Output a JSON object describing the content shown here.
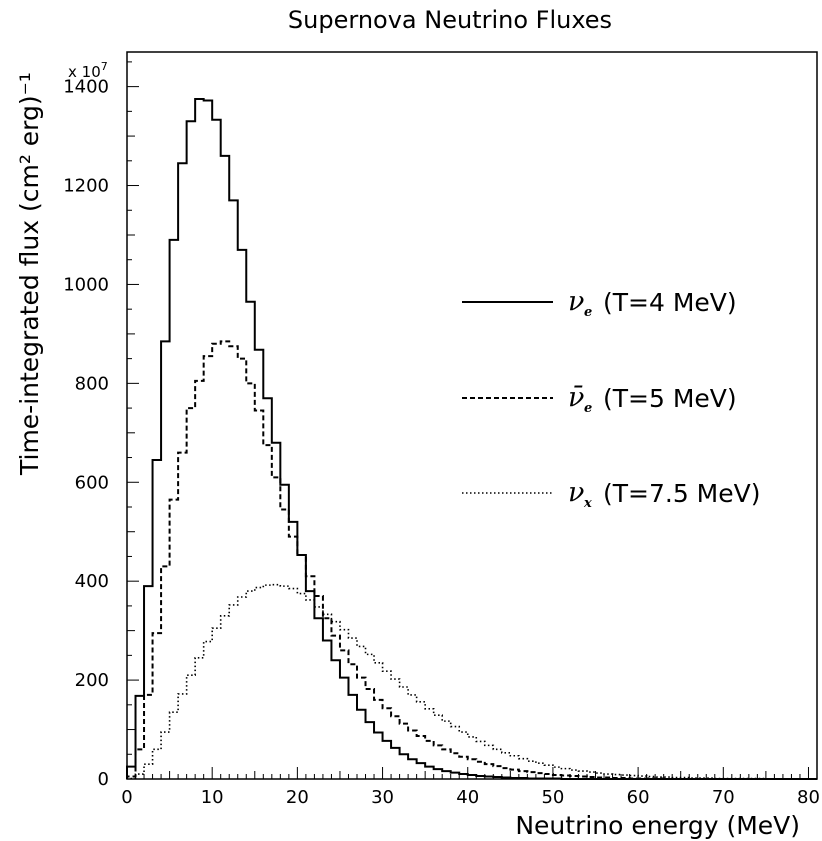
{
  "chart_data": {
    "type": "line",
    "title": "Supernova Neutrino Fluxes",
    "xlabel": "Neutrino energy (MeV)",
    "ylabel": "Time-integrated flux (cm² erg)⁻¹",
    "y_multiplier": "x 10",
    "y_multiplier_exp": "7",
    "xlim": [
      0,
      81
    ],
    "ylim": [
      0,
      1470
    ],
    "x_ticks": [
      0,
      10,
      20,
      30,
      40,
      50,
      60,
      70,
      80
    ],
    "y_ticks": [
      0,
      200,
      400,
      600,
      800,
      1000,
      1200,
      1400
    ],
    "bin_width": 1,
    "series": [
      {
        "name": "ν_e (T=4 MeV)",
        "symbol": "ν",
        "subscript": "e",
        "label": "(T=4 MeV)",
        "style": "solid",
        "values": [
          25,
          168,
          390,
          645,
          885,
          1090,
          1245,
          1330,
          1375,
          1372,
          1333,
          1260,
          1170,
          1070,
          965,
          868,
          770,
          680,
          595,
          520,
          453,
          380,
          325,
          280,
          240,
          205,
          170,
          140,
          115,
          94,
          77,
          63,
          50,
          40,
          32,
          25,
          20,
          16,
          13,
          10,
          8,
          6,
          5,
          4,
          3,
          2,
          2,
          1,
          1,
          1,
          1,
          0,
          0,
          0,
          0,
          0,
          0,
          0,
          0,
          0,
          0,
          0,
          0,
          0,
          0,
          0,
          0,
          0,
          0,
          0,
          0,
          0,
          0,
          0,
          0,
          0,
          0,
          0,
          0,
          0,
          0
        ]
      },
      {
        "name": "ν̄_e (T=5 MeV)",
        "symbol": "ν̄",
        "subscript": "e",
        "label": "(T=5 MeV)",
        "style": "dashed",
        "values": [
          5,
          60,
          170,
          295,
          430,
          565,
          660,
          750,
          805,
          855,
          880,
          885,
          875,
          850,
          800,
          745,
          675,
          610,
          545,
          490,
          453,
          410,
          370,
          325,
          290,
          260,
          232,
          205,
          182,
          160,
          143,
          127,
          112,
          98,
          87,
          77,
          68,
          60,
          52,
          45,
          40,
          35,
          30,
          26,
          22,
          19,
          16,
          14,
          12,
          10,
          8,
          7,
          6,
          5,
          4,
          3,
          3,
          2,
          2,
          1,
          1,
          1,
          1,
          0,
          0,
          0,
          0,
          0,
          0,
          0,
          0,
          0,
          0,
          0,
          0,
          0,
          0,
          0,
          0,
          0,
          0
        ]
      },
      {
        "name": "ν_x (T=7.5 MeV)",
        "symbol": "ν",
        "subscript": "x",
        "label": "(T=7.5 MeV)",
        "style": "dotted",
        "values": [
          1,
          10,
          30,
          60,
          95,
          135,
          172,
          210,
          245,
          278,
          305,
          330,
          352,
          368,
          380,
          387,
          392,
          393,
          390,
          385,
          375,
          362,
          348,
          333,
          318,
          302,
          285,
          268,
          252,
          235,
          218,
          202,
          186,
          170,
          156,
          142,
          129,
          117,
          106,
          95,
          85,
          76,
          68,
          60,
          53,
          47,
          41,
          36,
          32,
          28,
          24,
          21,
          18,
          16,
          14,
          12,
          10,
          9,
          8,
          7,
          6,
          5,
          4,
          4,
          3,
          3,
          2,
          2,
          2,
          1,
          1,
          1,
          1,
          1,
          1,
          0,
          0,
          0,
          0,
          0,
          0
        ]
      }
    ]
  }
}
